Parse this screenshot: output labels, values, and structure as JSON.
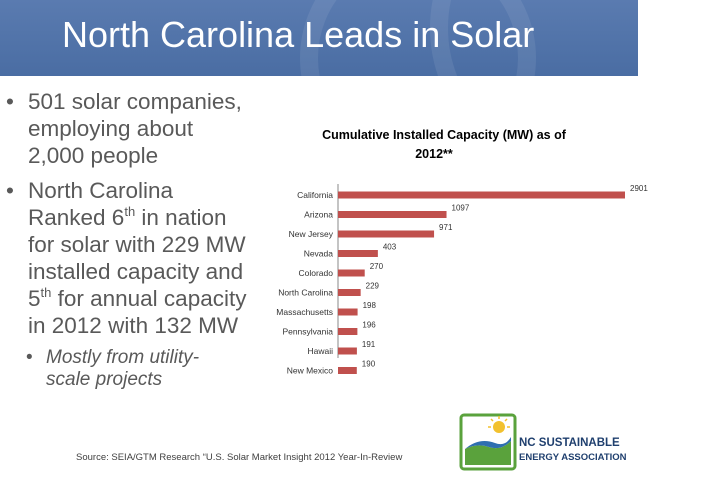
{
  "slide": {
    "title": "North Carolina Leads in Solar",
    "bullets": [
      {
        "lines": [
          "501 solar companies,",
          "employing about",
          "2,000 people"
        ]
      },
      {
        "line1_pre": "North Carolina",
        "line2_pre": "Ranked 6",
        "line2_sup": "th",
        "line2_post": " in nation",
        "line3": "for solar with 229 MW",
        "line4": "installed capacity and",
        "line5_pre": "5",
        "line5_sup": "th",
        "line5_post": " for annual capacity",
        "line6": "in 2012 with 132 MW"
      },
      {
        "lines": [
          "Mostly from utility-",
          "scale projects"
        ]
      }
    ],
    "bullet_char": "•",
    "source": "Source:   SEIA/GTM Research “U.S. Solar Market Insight 2012 Year-In-Review",
    "logo": {
      "line1": "NC SUSTAINABLE",
      "line2": "ENERGY ASSOCIATION"
    }
  },
  "colors": {
    "title_bar": "#4a6da3",
    "bar": "#c0504d",
    "text": "#595959",
    "logo_text": "#1f3f6e",
    "logo_green": "#5aa23c"
  },
  "chart_data": {
    "type": "bar",
    "orientation": "horizontal",
    "title_lines": [
      "Cumulative Installed Capacity (MW) as of",
      "2012**"
    ],
    "categories": [
      "California",
      "Arizona",
      "New Jersey",
      "Nevada",
      "Colorado",
      "North Carolina",
      "Massachusetts",
      "Pennsylvania",
      "Hawaii",
      "New Mexico"
    ],
    "values": [
      2901,
      1097,
      971,
      403,
      270,
      229,
      198,
      196,
      191,
      190
    ],
    "data_labels": [
      "2901",
      "1097",
      "971",
      "403",
      "270",
      "229",
      "198",
      "196",
      "191",
      "190"
    ],
    "xlim": [
      0,
      2901
    ],
    "grid": false,
    "legend": false
  }
}
